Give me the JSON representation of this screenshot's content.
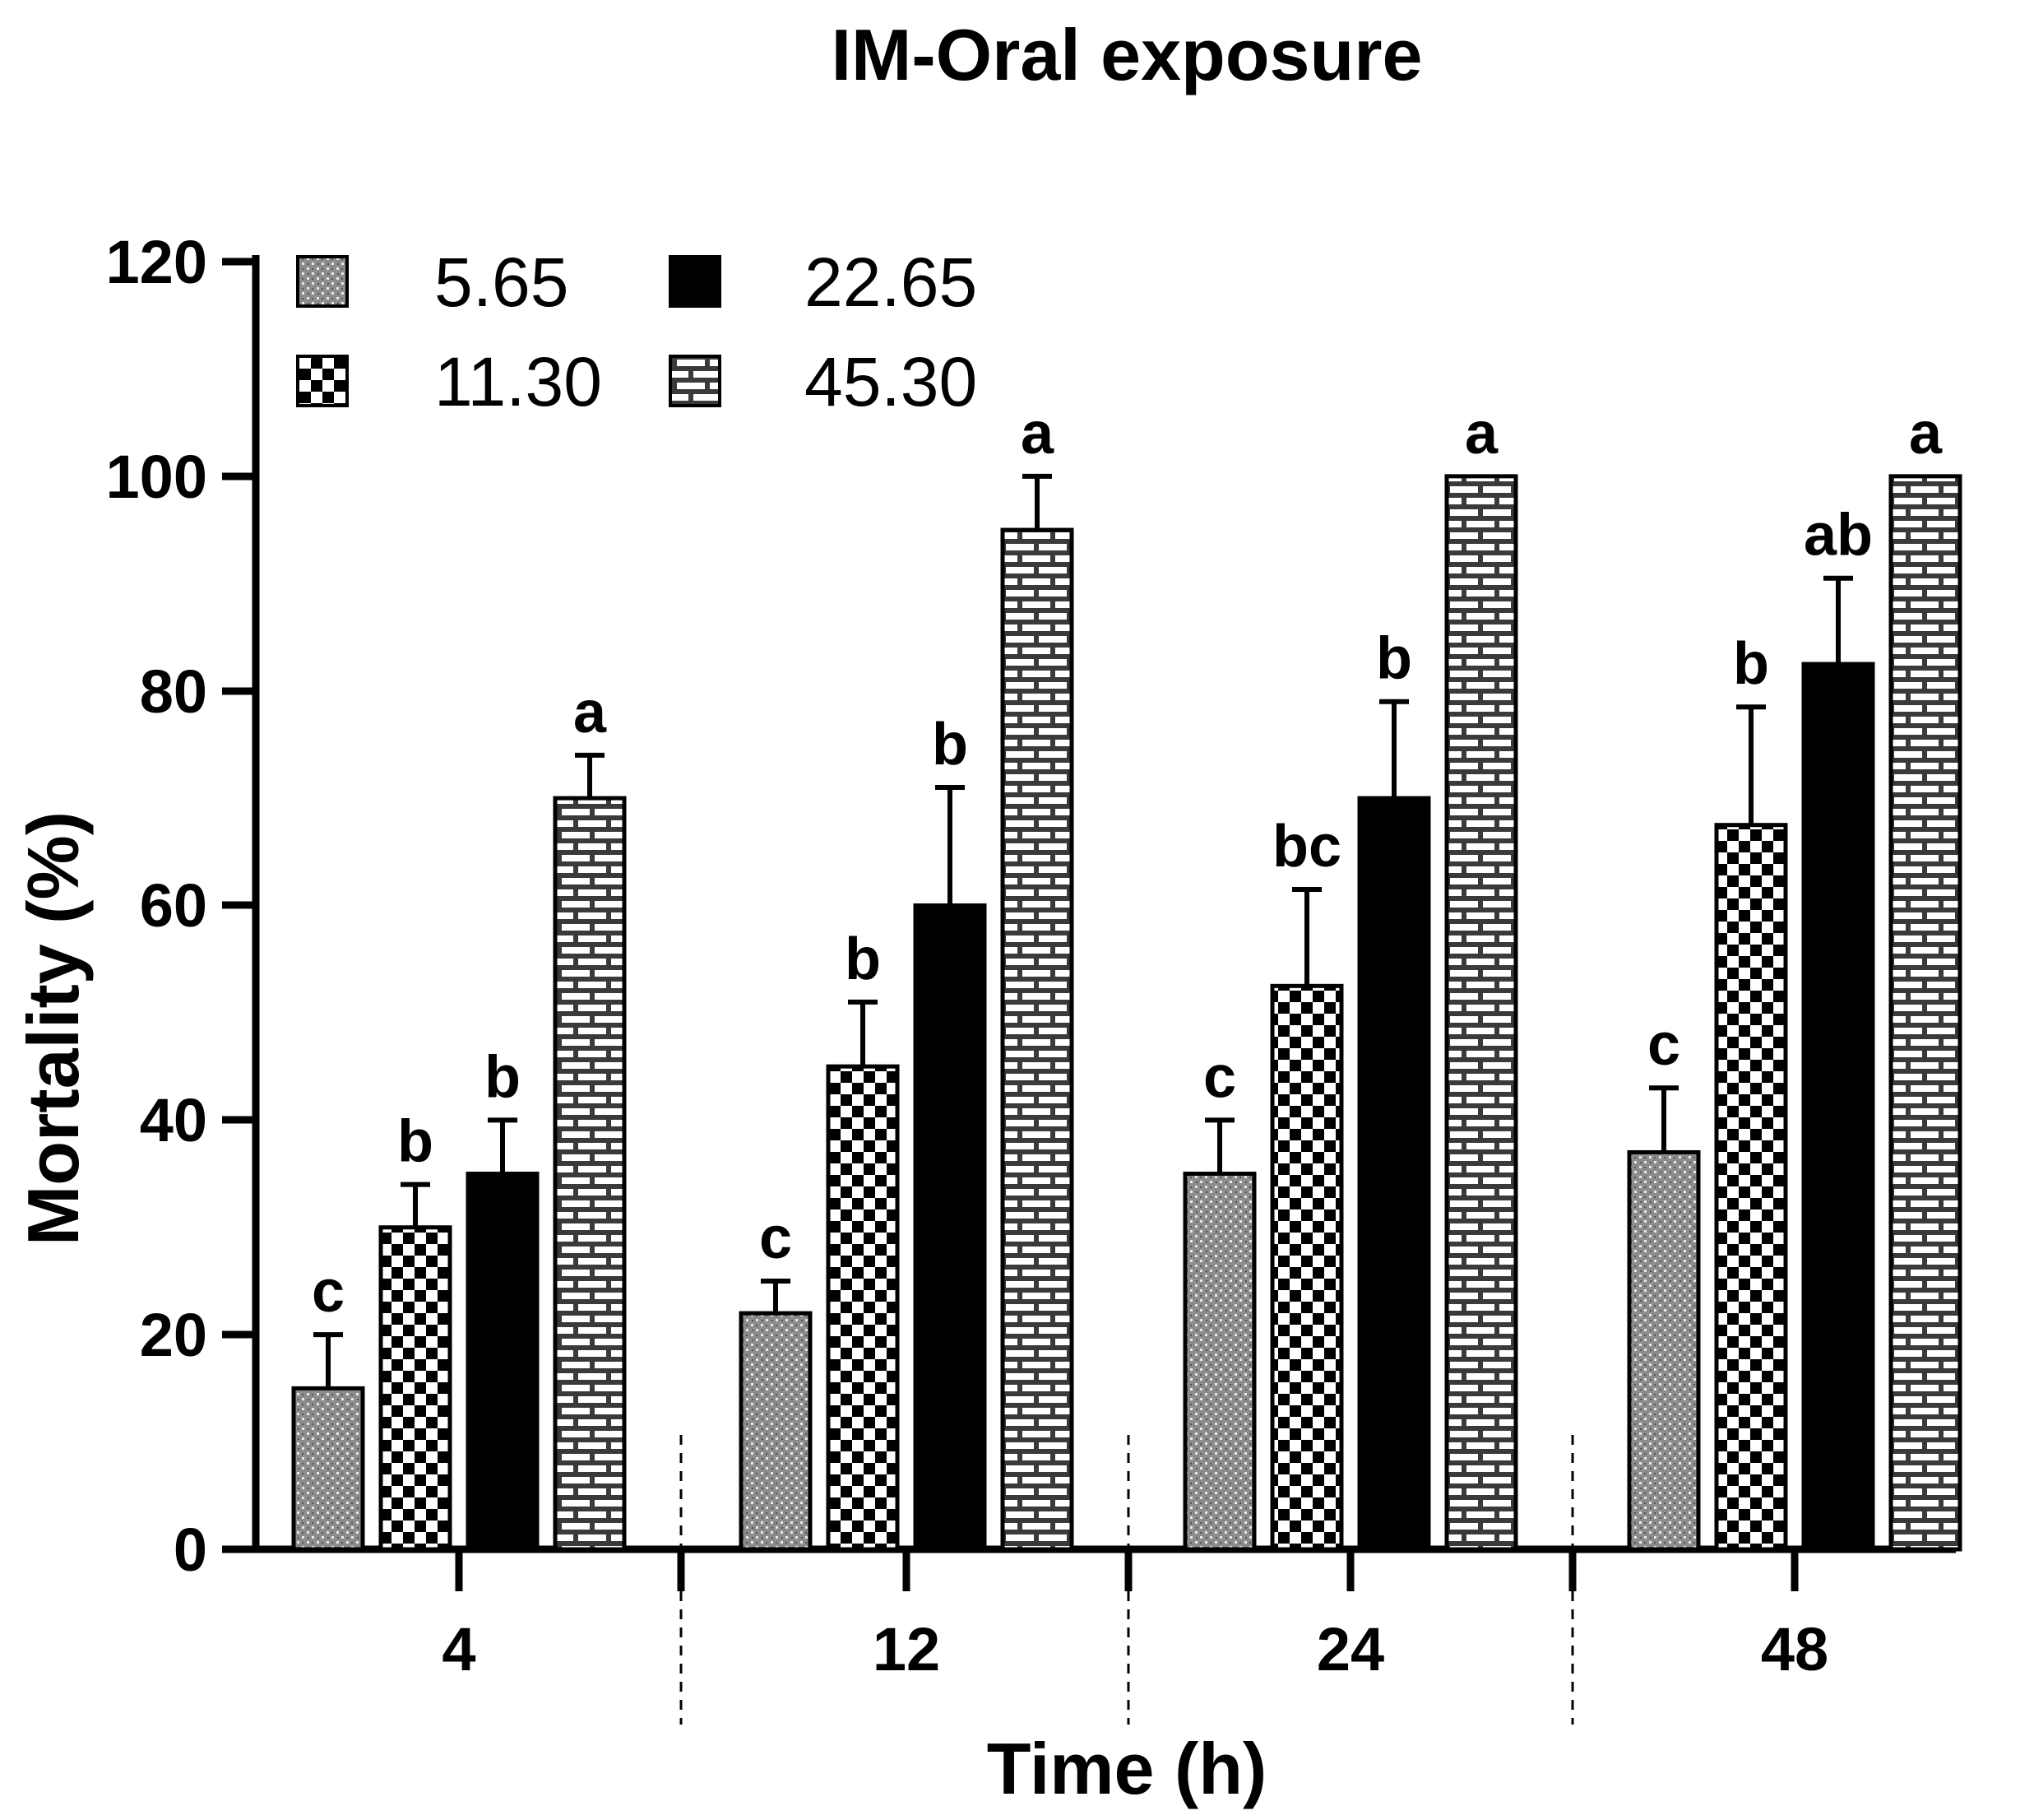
{
  "chart_data": {
    "type": "bar",
    "title": "IM-Oral exposure",
    "xlabel": "Time (h)",
    "ylabel": "Mortality (%)",
    "ylim": [
      0,
      120
    ],
    "yticks": [
      "0",
      "20",
      "40",
      "60",
      "80",
      "100",
      "120"
    ],
    "categories": [
      "4",
      "12",
      "24",
      "48"
    ],
    "legend_position": "top-left",
    "series": [
      {
        "name": "5.65",
        "pattern": "stipple",
        "values": [
          15,
          22,
          35,
          37
        ],
        "errors": [
          5,
          3,
          5,
          6
        ],
        "letters": [
          "c",
          "c",
          "c",
          "c"
        ]
      },
      {
        "name": "11.30",
        "pattern": "checker",
        "values": [
          30,
          45,
          52.5,
          67.5
        ],
        "errors": [
          4,
          6,
          9,
          11
        ],
        "letters": [
          "b",
          "b",
          "bc",
          "b"
        ]
      },
      {
        "name": "22.65",
        "pattern": "solid",
        "values": [
          35,
          60,
          70,
          82.5
        ],
        "errors": [
          5,
          11,
          9,
          8
        ],
        "letters": [
          "b",
          "b",
          "b",
          "ab"
        ]
      },
      {
        "name": "45.30",
        "pattern": "brick",
        "values": [
          70,
          95,
          100,
          100
        ],
        "errors": [
          4,
          5,
          0,
          0
        ],
        "letters": [
          "a",
          "a",
          "a",
          "a"
        ]
      }
    ],
    "colors": {
      "axis": "#000000",
      "bar_fill_solid": "#000000",
      "stipple_base": "#8c8c8c",
      "brick_base": "#3a3a3a"
    }
  }
}
